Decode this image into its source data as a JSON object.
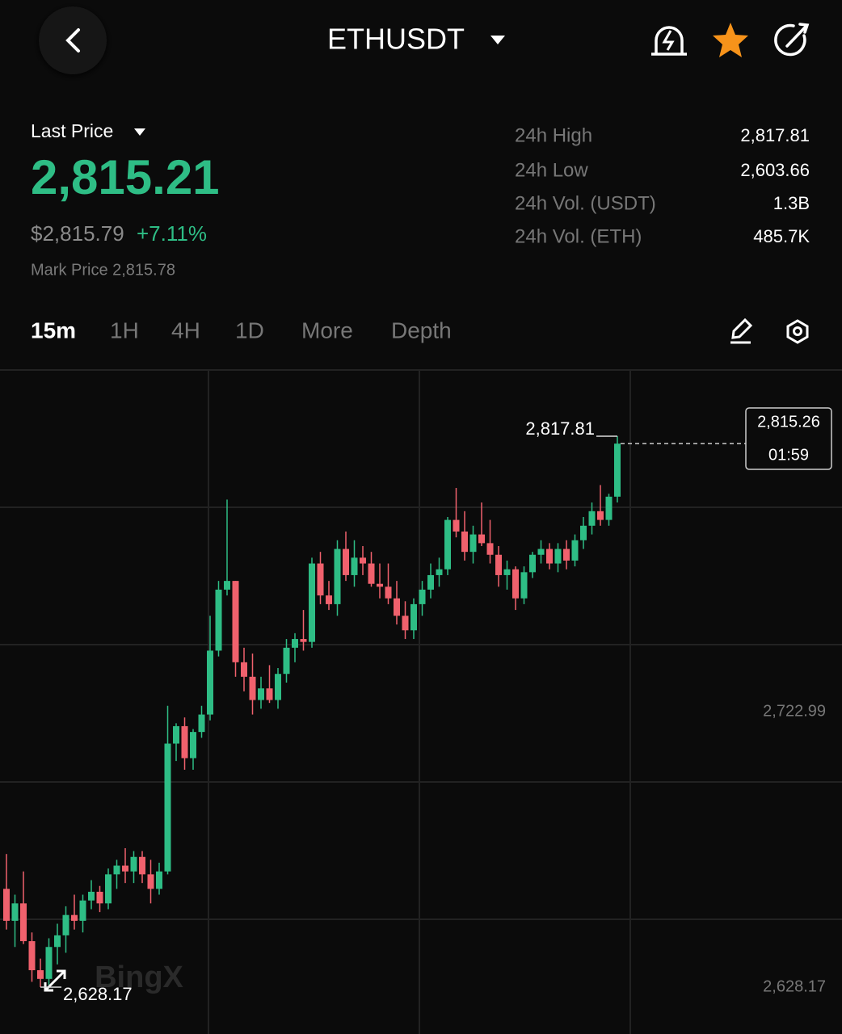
{
  "header": {
    "symbol": "ETHUSDT"
  },
  "price_panel": {
    "last_price_label": "Last Price",
    "last_price": "2,815.21",
    "usd_price": "$2,815.79",
    "change": "+7.11%",
    "mark_price": "Mark Price 2,815.78",
    "stats": [
      {
        "label": "24h High",
        "value": "2,817.81"
      },
      {
        "label": "24h Low",
        "value": "2,603.66"
      },
      {
        "label": "24h Vol. (USDT)",
        "value": "1.3B"
      },
      {
        "label": "24h Vol. (ETH)",
        "value": "485.7K"
      }
    ]
  },
  "tabs": [
    "15m",
    "1H",
    "4H",
    "1D",
    "More",
    "Depth"
  ],
  "chart_data": {
    "type": "candlestick",
    "open": [
      2662,
      2651,
      2657,
      2644,
      2634,
      2631,
      2642,
      2646,
      2653,
      2651,
      2658,
      2661,
      2657,
      2667,
      2670,
      2668,
      2673,
      2667,
      2662,
      2668,
      2712,
      2718,
      2707,
      2716,
      2722,
      2744,
      2765,
      2768,
      2740,
      2735,
      2727,
      2731,
      2727,
      2736,
      2745,
      2748,
      2747,
      2774,
      2763,
      2760,
      2779,
      2770,
      2776,
      2774,
      2767,
      2766,
      2762,
      2756,
      2751,
      2760,
      2765,
      2770,
      2772,
      2789,
      2785,
      2778,
      2784,
      2781,
      2777,
      2770,
      2772,
      2762,
      2771,
      2777,
      2779,
      2774,
      2779,
      2775,
      2782,
      2787,
      2792,
      2789,
      2797
    ],
    "high": [
      2674,
      2660,
      2668,
      2647,
      2638,
      2645,
      2650,
      2656,
      2660,
      2660,
      2665,
      2663,
      2669,
      2672,
      2676,
      2675,
      2675,
      2672,
      2671,
      2725,
      2719,
      2721,
      2717,
      2725,
      2756,
      2768,
      2796,
      2768,
      2745,
      2743,
      2735,
      2739,
      2738,
      2748,
      2750,
      2758,
      2776,
      2778,
      2768,
      2782,
      2785,
      2782,
      2780,
      2778,
      2774,
      2774,
      2768,
      2761,
      2762,
      2768,
      2774,
      2776,
      2790,
      2800,
      2792,
      2787,
      2795,
      2789,
      2780,
      2775,
      2773,
      2773,
      2778,
      2782,
      2781,
      2781,
      2782,
      2784,
      2790,
      2795,
      2801,
      2798,
      2817.81
    ],
    "low": [
      2648,
      2642,
      2643,
      2630,
      2628.17,
      2629,
      2636,
      2640,
      2648,
      2647,
      2655,
      2654,
      2655,
      2662,
      2664,
      2664,
      2664,
      2657,
      2660,
      2667,
      2706,
      2703,
      2703,
      2714,
      2720,
      2742,
      2763,
      2735,
      2730,
      2722,
      2724,
      2726,
      2724,
      2733,
      2740,
      2744,
      2745,
      2760,
      2758,
      2756,
      2768,
      2766,
      2770,
      2766,
      2762,
      2760,
      2753,
      2748,
      2748,
      2756,
      2762,
      2766,
      2770,
      2783,
      2775,
      2774,
      2780,
      2774,
      2766,
      2765,
      2758,
      2760,
      2769,
      2774,
      2772,
      2771,
      2772,
      2773,
      2779,
      2784,
      2787,
      2787,
      2795
    ],
    "close": [
      2651,
      2657,
      2644,
      2634,
      2631,
      2642,
      2646,
      2653,
      2651,
      2658,
      2661,
      2657,
      2667,
      2670,
      2668,
      2673,
      2667,
      2662,
      2668,
      2712,
      2718,
      2707,
      2716,
      2722,
      2744,
      2765,
      2768,
      2740,
      2735,
      2727,
      2731,
      2727,
      2736,
      2745,
      2748,
      2747,
      2774,
      2763,
      2760,
      2779,
      2770,
      2776,
      2774,
      2767,
      2766,
      2762,
      2756,
      2751,
      2760,
      2765,
      2770,
      2772,
      2789,
      2785,
      2778,
      2784,
      2781,
      2777,
      2770,
      2772,
      2762,
      2771,
      2777,
      2779,
      2774,
      2779,
      2775,
      2782,
      2787,
      2792,
      2789,
      2797,
      2815.26
    ],
    "up_color": "#2ebd85",
    "down_color": "#f0616d",
    "ylim": [
      2612.04,
      2840.61
    ],
    "yticks": [
      {
        "value": 2722.99,
        "label": "2,722.99"
      },
      {
        "value": 2628.17,
        "label": "2,628.17"
      }
    ],
    "grid": true,
    "high_label": "2,817.81",
    "low_label": "2,628.17",
    "last_label": "2,815.26",
    "countdown": "01:59",
    "watermark": "BingX"
  }
}
